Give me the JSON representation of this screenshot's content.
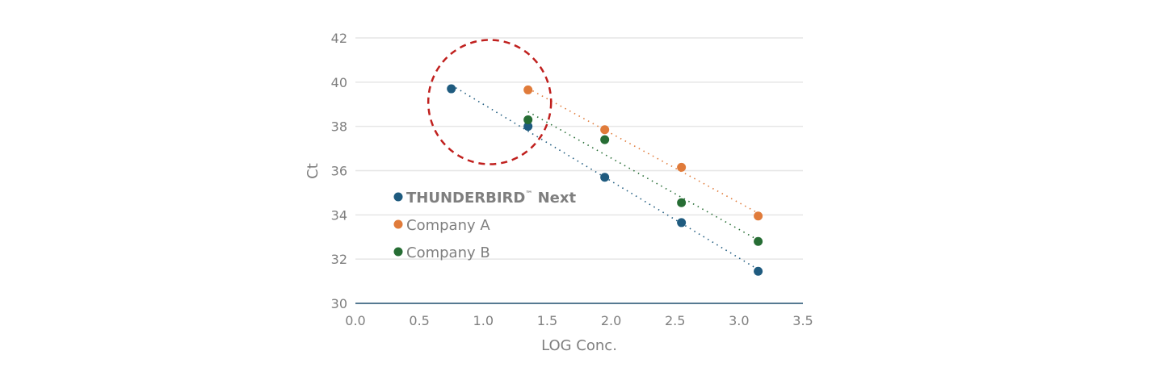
{
  "chart_data": {
    "type": "scatter",
    "xlabel": "LOG Conc.",
    "ylabel": "Ct",
    "xlim": [
      0,
      3.5
    ],
    "ylim": [
      30,
      42
    ],
    "xticks": [
      "0.0",
      "0.5",
      "1.0",
      "1.5",
      "2.0",
      "2.5",
      "3.0",
      "3.5"
    ],
    "yticks": [
      "30",
      "32",
      "34",
      "36",
      "38",
      "40",
      "42"
    ],
    "grid": "horizontal",
    "legend_placement": "inside-left",
    "trendlines": "linear, dotted",
    "annotation": {
      "shape": "dashed circle",
      "color": "#c0201e",
      "center": [
        1.05,
        39.1
      ]
    },
    "series": [
      {
        "name": "THUNDERBIRD",
        "name_suffix": "™",
        "name_tail": " Next",
        "color": "#1f5b7f",
        "bold": true,
        "x": [
          0.75,
          1.35,
          1.95,
          2.55,
          3.15
        ],
        "y": [
          39.7,
          38.0,
          35.7,
          33.65,
          31.45
        ]
      },
      {
        "name": "Company A",
        "color": "#e07b3a",
        "x": [
          1.35,
          1.95,
          2.55,
          3.15
        ],
        "y": [
          39.65,
          37.85,
          36.15,
          33.95
        ]
      },
      {
        "name": "Company B",
        "color": "#266d34",
        "x": [
          1.35,
          1.95,
          2.55,
          3.15
        ],
        "y": [
          38.3,
          37.4,
          34.55,
          32.8
        ]
      }
    ]
  }
}
